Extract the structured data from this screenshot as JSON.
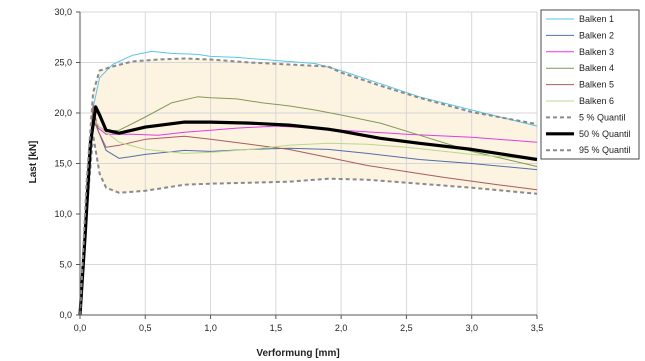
{
  "chart_data": {
    "type": "line",
    "title": "",
    "xlabel": "Verformung [mm]",
    "ylabel": "Last [kN]",
    "xlim": [
      0,
      3.5
    ],
    "ylim": [
      0,
      30
    ],
    "x_ticks": [
      "0,0",
      "0,5",
      "1,0",
      "1,5",
      "2,0",
      "2,5",
      "3,0",
      "3,5"
    ],
    "y_ticks": [
      "0,0",
      "5,0",
      "10,0",
      "15,0",
      "20,0",
      "25,0",
      "30,0"
    ],
    "grid": true,
    "legend_position": "right",
    "band": {
      "between": [
        "5 % Quantil",
        "95 % Quantil"
      ],
      "color": "#fdf3e1"
    },
    "series": [
      {
        "name": "Balken 1",
        "color": "#5bc6e8",
        "width": 1,
        "dash": "",
        "points": [
          [
            0,
            0
          ],
          [
            0.05,
            12
          ],
          [
            0.1,
            20.5
          ],
          [
            0.15,
            23.5
          ],
          [
            0.25,
            24.8
          ],
          [
            0.4,
            25.7
          ],
          [
            0.55,
            26.1
          ],
          [
            0.7,
            25.9
          ],
          [
            0.9,
            25.8
          ],
          [
            1.0,
            25.6
          ],
          [
            1.2,
            25.5
          ],
          [
            1.5,
            25.2
          ],
          [
            1.8,
            24.9
          ],
          [
            2.0,
            24.2
          ],
          [
            2.3,
            22.9
          ],
          [
            2.6,
            21.6
          ],
          [
            3.0,
            20.3
          ],
          [
            3.5,
            18.7
          ]
        ]
      },
      {
        "name": "Balken 2",
        "color": "#4f6fa8",
        "width": 1,
        "dash": "",
        "points": [
          [
            0,
            0
          ],
          [
            0.05,
            10
          ],
          [
            0.1,
            19.5
          ],
          [
            0.14,
            18.2
          ],
          [
            0.2,
            16.3
          ],
          [
            0.3,
            15.5
          ],
          [
            0.5,
            15.9
          ],
          [
            0.8,
            16.3
          ],
          [
            1.0,
            16.2
          ],
          [
            1.3,
            16.4
          ],
          [
            1.6,
            16.5
          ],
          [
            1.9,
            16.4
          ],
          [
            2.2,
            16.0
          ],
          [
            2.6,
            15.4
          ],
          [
            3.0,
            15.0
          ],
          [
            3.5,
            14.4
          ]
        ]
      },
      {
        "name": "Balken 3",
        "color": "#e23ce0",
        "width": 1,
        "dash": "",
        "points": [
          [
            0,
            0
          ],
          [
            0.05,
            10
          ],
          [
            0.1,
            19.0
          ],
          [
            0.15,
            18.4
          ],
          [
            0.2,
            17.9
          ],
          [
            0.4,
            17.9
          ],
          [
            0.6,
            17.8
          ],
          [
            0.8,
            18.1
          ],
          [
            1.0,
            18.3
          ],
          [
            1.2,
            18.5
          ],
          [
            1.5,
            18.7
          ],
          [
            1.8,
            18.5
          ],
          [
            2.0,
            18.3
          ],
          [
            2.5,
            17.9
          ],
          [
            3.0,
            17.6
          ],
          [
            3.5,
            17.1
          ]
        ]
      },
      {
        "name": "Balken 4",
        "color": "#7f9a58",
        "width": 1,
        "dash": "",
        "points": [
          [
            0,
            0
          ],
          [
            0.05,
            10
          ],
          [
            0.1,
            19.0
          ],
          [
            0.15,
            18.6
          ],
          [
            0.2,
            18.2
          ],
          [
            0.3,
            18.3
          ],
          [
            0.5,
            19.6
          ],
          [
            0.7,
            21.0
          ],
          [
            0.9,
            21.6
          ],
          [
            1.0,
            21.5
          ],
          [
            1.2,
            21.4
          ],
          [
            1.4,
            21.0
          ],
          [
            1.6,
            20.7
          ],
          [
            1.8,
            20.3
          ],
          [
            2.0,
            19.8
          ],
          [
            2.3,
            19.0
          ],
          [
            2.6,
            17.8
          ],
          [
            3.0,
            16.2
          ],
          [
            3.5,
            14.7
          ]
        ]
      },
      {
        "name": "Balken 5",
        "color": "#a85c5c",
        "width": 1,
        "dash": "",
        "points": [
          [
            0,
            0
          ],
          [
            0.05,
            12
          ],
          [
            0.1,
            20.8
          ],
          [
            0.14,
            18.2
          ],
          [
            0.2,
            16.6
          ],
          [
            0.3,
            16.8
          ],
          [
            0.5,
            17.4
          ],
          [
            0.8,
            17.7
          ],
          [
            1.0,
            17.4
          ],
          [
            1.3,
            16.9
          ],
          [
            1.6,
            16.4
          ],
          [
            1.9,
            15.6
          ],
          [
            2.2,
            14.8
          ],
          [
            2.5,
            14.2
          ],
          [
            2.8,
            13.6
          ],
          [
            3.2,
            12.9
          ],
          [
            3.5,
            12.4
          ]
        ]
      },
      {
        "name": "Balken 6",
        "color": "#b9d98a",
        "width": 1,
        "dash": "",
        "points": [
          [
            0,
            0
          ],
          [
            0.05,
            10
          ],
          [
            0.1,
            19.6
          ],
          [
            0.15,
            18.6
          ],
          [
            0.3,
            17.1
          ],
          [
            0.5,
            16.4
          ],
          [
            0.8,
            16.0
          ],
          [
            1.0,
            16.1
          ],
          [
            1.3,
            16.4
          ],
          [
            1.6,
            16.8
          ],
          [
            1.9,
            17.0
          ],
          [
            2.2,
            16.9
          ],
          [
            2.5,
            16.6
          ],
          [
            3.0,
            15.9
          ],
          [
            3.5,
            15.4
          ]
        ]
      },
      {
        "name": "5 % Quantil",
        "color": "#8a8a8a",
        "width": 2,
        "dash": "4 3",
        "points": [
          [
            0,
            0
          ],
          [
            0.05,
            10
          ],
          [
            0.1,
            17.8
          ],
          [
            0.15,
            14.0
          ],
          [
            0.2,
            12.6
          ],
          [
            0.3,
            12.1
          ],
          [
            0.5,
            12.3
          ],
          [
            0.8,
            12.9
          ],
          [
            1.0,
            13.0
          ],
          [
            1.3,
            13.1
          ],
          [
            1.6,
            13.2
          ],
          [
            1.9,
            13.5
          ],
          [
            2.2,
            13.4
          ],
          [
            2.6,
            13.0
          ],
          [
            3.0,
            12.6
          ],
          [
            3.5,
            12.0
          ]
        ]
      },
      {
        "name": "50 % Quantil",
        "color": "#000000",
        "width": 3.2,
        "dash": "",
        "points": [
          [
            0,
            0
          ],
          [
            0.04,
            8
          ],
          [
            0.08,
            17
          ],
          [
            0.12,
            20.6
          ],
          [
            0.15,
            19.8
          ],
          [
            0.2,
            18.3
          ],
          [
            0.3,
            18.0
          ],
          [
            0.5,
            18.6
          ],
          [
            0.8,
            19.1
          ],
          [
            1.0,
            19.1
          ],
          [
            1.3,
            19.0
          ],
          [
            1.6,
            18.8
          ],
          [
            1.9,
            18.4
          ],
          [
            2.0,
            18.2
          ],
          [
            2.3,
            17.5
          ],
          [
            2.6,
            17.0
          ],
          [
            3.0,
            16.4
          ],
          [
            3.5,
            15.4
          ]
        ]
      },
      {
        "name": "95 % Quantil",
        "color": "#8a8a8a",
        "width": 2,
        "dash": "4 3",
        "points": [
          [
            0,
            0
          ],
          [
            0.05,
            13
          ],
          [
            0.1,
            22.0
          ],
          [
            0.15,
            24.2
          ],
          [
            0.25,
            24.6
          ],
          [
            0.4,
            25.1
          ],
          [
            0.6,
            25.3
          ],
          [
            0.8,
            25.4
          ],
          [
            1.0,
            25.3
          ],
          [
            1.3,
            25.0
          ],
          [
            1.6,
            24.8
          ],
          [
            1.9,
            24.6
          ],
          [
            2.0,
            24.0
          ],
          [
            2.3,
            22.7
          ],
          [
            2.6,
            21.5
          ],
          [
            3.0,
            20.1
          ],
          [
            3.5,
            18.9
          ]
        ]
      }
    ]
  }
}
